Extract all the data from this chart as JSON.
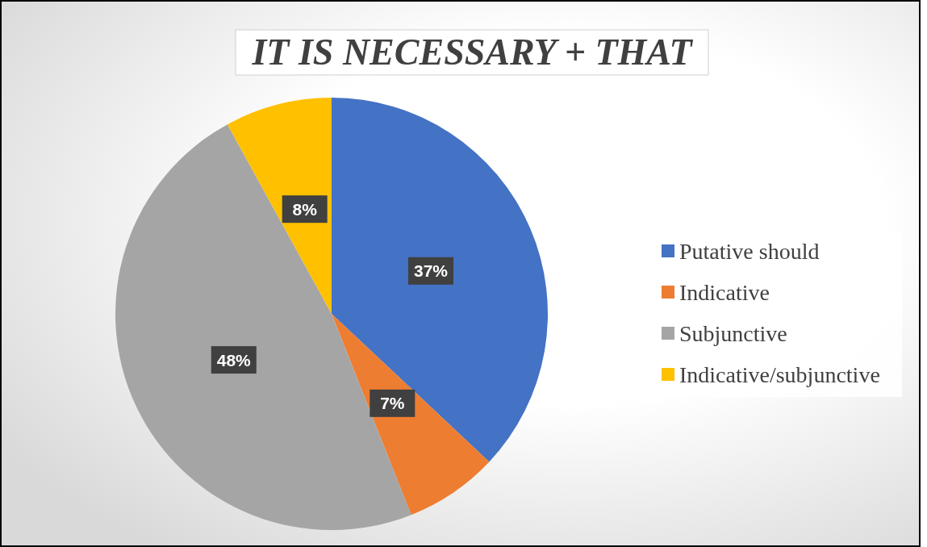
{
  "chart_data": {
    "type": "pie",
    "title": "IT IS NECESSARY + THAT",
    "categories": [
      "Putative should",
      "Indicative",
      "Subjunctive",
      "Indicative/subjunctive"
    ],
    "values": [
      37,
      7,
      48,
      8
    ],
    "value_labels": [
      "37%",
      "7%",
      "48%",
      "8%"
    ],
    "colors": [
      "#4472c4",
      "#ed7d31",
      "#a5a5a5",
      "#ffc000"
    ],
    "legend": "right"
  }
}
